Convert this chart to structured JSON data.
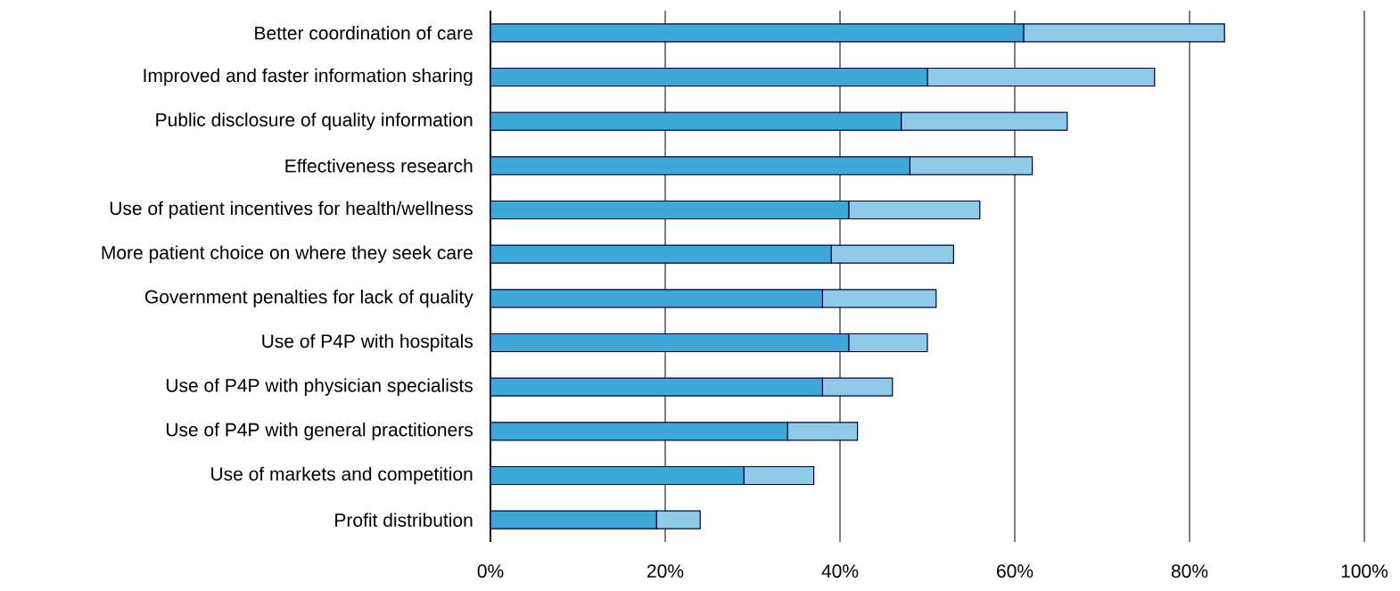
{
  "chart_data": {
    "type": "bar",
    "orientation": "horizontal",
    "stacked": true,
    "grid": "x",
    "categories": [
      "Better coordination of care",
      "Improved and faster information sharing",
      "Public disclosure of quality information",
      "Effectiveness research",
      "Use of patient incentives for health/wellness",
      "More patient choice on where they seek care",
      "Government penalties for lack of quality",
      "Use of P4P with hospitals",
      "Use of P4P with physician specialists",
      "Use of P4P with general practitioners",
      "Use of markets and competition",
      "Profit distribution"
    ],
    "series": [
      {
        "color": "#3ea8d8",
        "values": [
          61,
          50,
          47,
          48,
          41,
          39,
          38,
          41,
          38,
          34,
          29,
          19
        ]
      },
      {
        "color": "#8fcae6",
        "values": [
          23,
          26,
          19,
          14,
          15,
          14,
          13,
          9,
          8,
          8,
          8,
          5
        ]
      }
    ],
    "xlim": [
      0,
      100
    ],
    "xticks": [
      {
        "value": 0,
        "label": "0%"
      },
      {
        "value": 20,
        "label": "20%"
      },
      {
        "value": 40,
        "label": "40%"
      },
      {
        "value": 60,
        "label": "60%"
      },
      {
        "value": 80,
        "label": "80%"
      },
      {
        "value": 100,
        "label": "100%"
      }
    ]
  }
}
